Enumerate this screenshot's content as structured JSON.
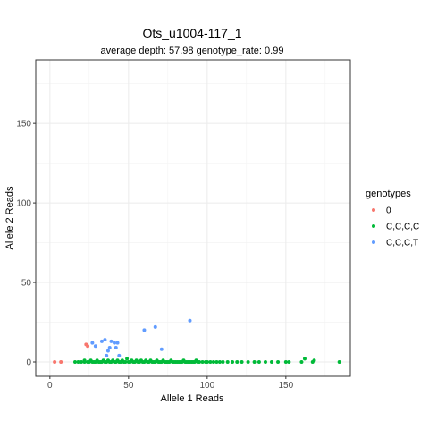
{
  "chart_data": {
    "type": "scatter",
    "title": "Ots_u1004-117_1",
    "subtitle": "average depth:  57.98  genotype_rate:  0.99",
    "xlabel": "Allele 1 Reads",
    "ylabel": "Allele 2 Reads",
    "xlim": [
      -9,
      191
    ],
    "ylim": [
      -9,
      190
    ],
    "xticks": [
      0,
      50,
      100,
      150
    ],
    "yticks": [
      0,
      50,
      100,
      150
    ],
    "grid": true,
    "legend": {
      "title": "genotypes",
      "position": "right"
    },
    "series": [
      {
        "name": "0",
        "color": "#F8766D",
        "points": [
          [
            3,
            0
          ],
          [
            7,
            0
          ],
          [
            23,
            11
          ],
          [
            24,
            10
          ]
        ]
      },
      {
        "name": "C,C,C,C",
        "color": "#00BA38",
        "points": [
          [
            16,
            0
          ],
          [
            18,
            0
          ],
          [
            20,
            0
          ],
          [
            22,
            0
          ],
          [
            22,
            1
          ],
          [
            24,
            0
          ],
          [
            25,
            0
          ],
          [
            26,
            1
          ],
          [
            27,
            0
          ],
          [
            28,
            0
          ],
          [
            29,
            0
          ],
          [
            30,
            1
          ],
          [
            31,
            0
          ],
          [
            32,
            0
          ],
          [
            33,
            0
          ],
          [
            34,
            1
          ],
          [
            35,
            0
          ],
          [
            36,
            0
          ],
          [
            37,
            1
          ],
          [
            38,
            0
          ],
          [
            39,
            0
          ],
          [
            40,
            1
          ],
          [
            41,
            0
          ],
          [
            42,
            0
          ],
          [
            43,
            1
          ],
          [
            44,
            0
          ],
          [
            45,
            0
          ],
          [
            46,
            1
          ],
          [
            47,
            0
          ],
          [
            48,
            0
          ],
          [
            49,
            2
          ],
          [
            50,
            0
          ],
          [
            51,
            0
          ],
          [
            52,
            1
          ],
          [
            53,
            0
          ],
          [
            54,
            0
          ],
          [
            55,
            1
          ],
          [
            56,
            0
          ],
          [
            57,
            0
          ],
          [
            58,
            1
          ],
          [
            59,
            0
          ],
          [
            60,
            0
          ],
          [
            61,
            1
          ],
          [
            62,
            0
          ],
          [
            63,
            0
          ],
          [
            64,
            1
          ],
          [
            65,
            0
          ],
          [
            66,
            0
          ],
          [
            67,
            0
          ],
          [
            68,
            1
          ],
          [
            69,
            0
          ],
          [
            70,
            0
          ],
          [
            71,
            0
          ],
          [
            72,
            1
          ],
          [
            73,
            0
          ],
          [
            74,
            0
          ],
          [
            75,
            0
          ],
          [
            76,
            0
          ],
          [
            77,
            1
          ],
          [
            78,
            0
          ],
          [
            79,
            0
          ],
          [
            80,
            0
          ],
          [
            81,
            0
          ],
          [
            82,
            0
          ],
          [
            83,
            0
          ],
          [
            84,
            0
          ],
          [
            85,
            1
          ],
          [
            86,
            0
          ],
          [
            87,
            0
          ],
          [
            88,
            0
          ],
          [
            89,
            0
          ],
          [
            90,
            0
          ],
          [
            91,
            0
          ],
          [
            92,
            0
          ],
          [
            93,
            1
          ],
          [
            94,
            0
          ],
          [
            95,
            0
          ],
          [
            97,
            0
          ],
          [
            99,
            0
          ],
          [
            100,
            0
          ],
          [
            102,
            0
          ],
          [
            104,
            0
          ],
          [
            106,
            0
          ],
          [
            108,
            0
          ],
          [
            110,
            0
          ],
          [
            113,
            0
          ],
          [
            116,
            0
          ],
          [
            119,
            0
          ],
          [
            122,
            0
          ],
          [
            126,
            0
          ],
          [
            130,
            0
          ],
          [
            133,
            0
          ],
          [
            137,
            0
          ],
          [
            141,
            0
          ],
          [
            145,
            0
          ],
          [
            150,
            0
          ],
          [
            152,
            0
          ],
          [
            160,
            0
          ],
          [
            162,
            2
          ],
          [
            167,
            0
          ],
          [
            168,
            1
          ],
          [
            184,
            0
          ]
        ]
      },
      {
        "name": "C,C,C,T",
        "color": "#619CFF",
        "points": [
          [
            27,
            12
          ],
          [
            29,
            10
          ],
          [
            33,
            13
          ],
          [
            35,
            14
          ],
          [
            36,
            4
          ],
          [
            37,
            7
          ],
          [
            38,
            9
          ],
          [
            39,
            13
          ],
          [
            41,
            12
          ],
          [
            42,
            9
          ],
          [
            43,
            12
          ],
          [
            44,
            4
          ],
          [
            60,
            20
          ],
          [
            67,
            22
          ],
          [
            71,
            8
          ],
          [
            89,
            26
          ]
        ]
      }
    ]
  }
}
